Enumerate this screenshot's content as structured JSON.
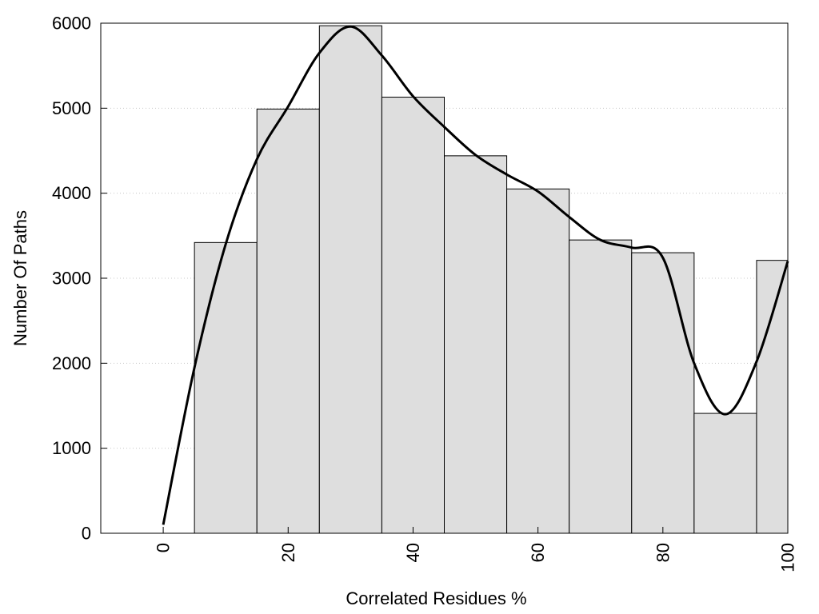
{
  "chart_data": {
    "type": "bar",
    "title": "",
    "xlabel": "Correlated Residues %",
    "ylabel": "Number Of Paths",
    "xlim": [
      -10,
      100
    ],
    "ylim": [
      0,
      6000
    ],
    "xticks": [
      0,
      20,
      40,
      60,
      80,
      100
    ],
    "yticks": [
      0,
      1000,
      2000,
      3000,
      4000,
      5000,
      6000
    ],
    "xtick_labels": [
      "0",
      "20",
      "40",
      "60",
      "80",
      "100"
    ],
    "ytick_labels": [
      "0",
      "1000",
      "2000",
      "3000",
      "4000",
      "5000",
      "6000"
    ],
    "grid": "horizontal dotted",
    "bar_width": 10,
    "categories": [
      10,
      20,
      30,
      40,
      50,
      60,
      70,
      80,
      90,
      100
    ],
    "values": [
      3420,
      4990,
      5970,
      5130,
      4440,
      4050,
      3450,
      3300,
      1410,
      3210
    ],
    "bar_color": "#dedede",
    "curve": {
      "x": [
        0,
        5,
        10,
        15,
        20,
        25,
        30,
        35,
        40,
        45,
        50,
        55,
        60,
        65,
        70,
        75,
        80,
        85,
        90,
        95,
        100
      ],
      "y": [
        100,
        1950,
        3400,
        4400,
        5020,
        5650,
        5960,
        5620,
        5140,
        4780,
        4450,
        4220,
        4020,
        3720,
        3450,
        3360,
        3240,
        2000,
        1400,
        2020,
        3200
      ]
    }
  }
}
